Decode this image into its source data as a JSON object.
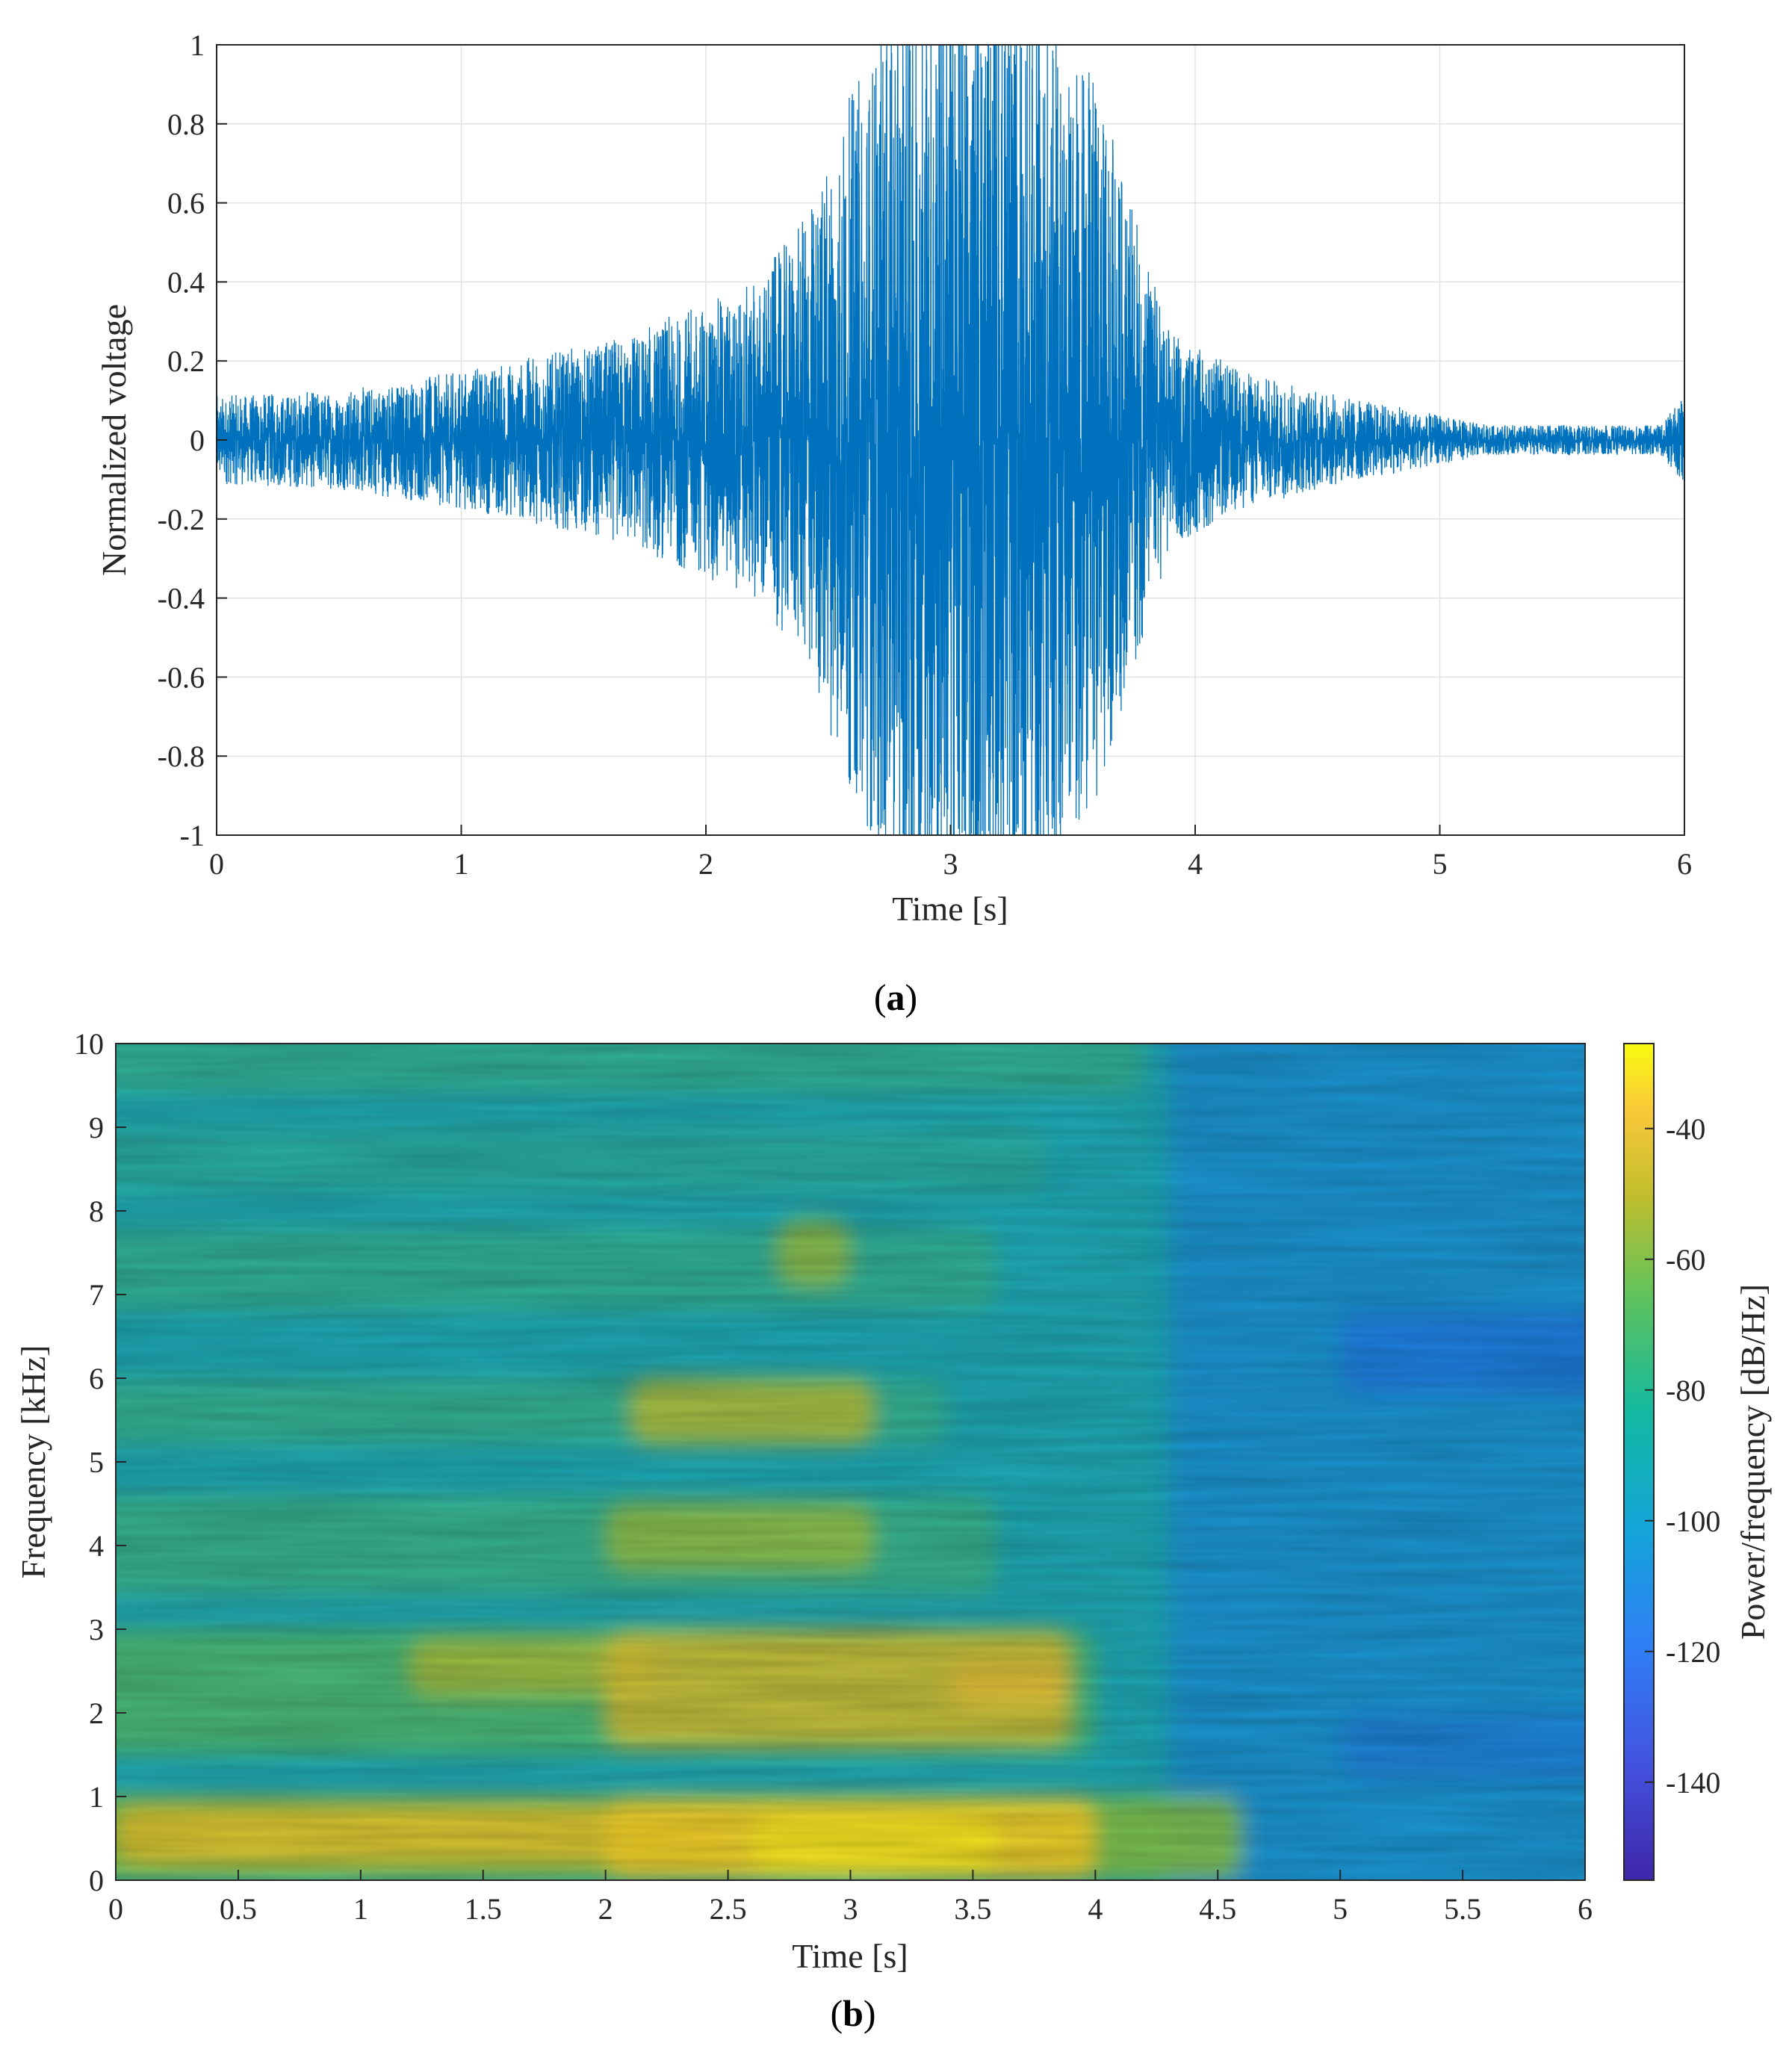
{
  "panel_a": {
    "label_open": "(",
    "label_letter": "a",
    "label_close": ")"
  },
  "panel_b": {
    "label_open": "(",
    "label_letter": "b",
    "label_close": ")"
  },
  "colors": {
    "waveform": "#0072bd",
    "grid": "#e3e3e3",
    "axis": "#262626"
  },
  "chart_data": [
    {
      "type": "line",
      "description_key": "waveform",
      "xlabel": "Time [s]",
      "ylabel": "Normalized voltage",
      "xlim": [
        0,
        6
      ],
      "ylim": [
        -1,
        1
      ],
      "xticks": [
        0,
        1,
        2,
        3,
        4,
        5,
        6
      ],
      "xticklabels": [
        "0",
        "1",
        "2",
        "3",
        "4",
        "5",
        "6"
      ],
      "yticks": [
        1,
        0.8,
        0.6,
        0.4,
        0.2,
        0,
        -0.2,
        -0.4,
        -0.6,
        -0.8,
        -1
      ],
      "yticklabels": [
        "1",
        "0.8",
        "0.6",
        "0.4",
        "0.2",
        "0",
        "-0.2",
        "-0.4",
        "-0.6",
        "-0.8",
        "-1"
      ],
      "grid": true,
      "series": [
        {
          "envelope_time": [
            0,
            0.5,
            1.0,
            1.3,
            1.6,
            1.9,
            2.2,
            2.4,
            2.6,
            2.8,
            3.0,
            3.2,
            3.4,
            3.6,
            3.8,
            3.9,
            4.2,
            4.5,
            4.9,
            5.2,
            5.6,
            5.9,
            6.0
          ],
          "envelope_amplitude": [
            0.09,
            0.1,
            0.14,
            0.17,
            0.2,
            0.26,
            0.32,
            0.45,
            0.72,
            0.95,
            1.0,
            0.98,
            0.88,
            0.72,
            0.38,
            0.22,
            0.14,
            0.1,
            0.06,
            0.03,
            0.03,
            0.03,
            0.09
          ]
        }
      ]
    },
    {
      "type": "heatmap",
      "description_key": "spectrogram",
      "xlabel": "Time [s]",
      "ylabel": "Frequency [kHz]",
      "xlim": [
        0,
        6
      ],
      "ylim": [
        0,
        10
      ],
      "xticks": [
        0,
        0.5,
        1,
        1.5,
        2,
        2.5,
        3,
        3.5,
        4,
        4.5,
        5,
        5.5,
        6
      ],
      "xticklabels": [
        "0",
        "0.5",
        "1",
        "1.5",
        "2",
        "2.5",
        "3",
        "3.5",
        "4",
        "4.5",
        "5",
        "5.5",
        "6"
      ],
      "yticks": [
        10,
        9,
        8,
        7,
        6,
        5,
        4,
        3,
        2,
        1,
        0
      ],
      "yticklabels": [
        "10",
        "9",
        "8",
        "7",
        "6",
        "5",
        "4",
        "3",
        "2",
        "1",
        "0"
      ],
      "colorbar": {
        "label": "Power/frequency [dB/Hz]",
        "range": [
          -155,
          -27
        ],
        "ticks": [
          -40,
          -60,
          -80,
          -100,
          -120,
          -140
        ],
        "ticklabels": [
          "-40",
          "-60",
          "-80",
          "-100",
          "-120",
          "-140"
        ],
        "colormap": "parula"
      },
      "band_frequencies_khz": [
        0.5,
        1.9,
        2.5,
        4.0,
        5.5,
        7.5
      ],
      "peak_power_db": -40
    }
  ]
}
